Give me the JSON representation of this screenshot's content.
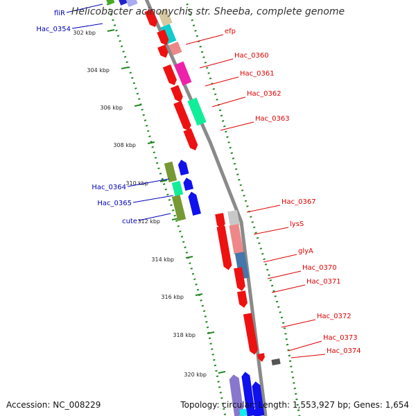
{
  "title": "Helicobacter acinonychis str. Sheeba, complete genome",
  "accession_label": "Accession:",
  "accession": "NC_008229",
  "topology_text": "Topology: circular; Length: 1,553,927 bp; Genes: 1,654",
  "colors": {
    "backbone": "#8a8a8a",
    "dotted_track": "#228822",
    "left_label": "#0000bb",
    "right_label": "#dd0000",
    "tick_text": "#222222"
  },
  "ticks": [
    {
      "label": "302 kbp"
    },
    {
      "label": "304 kbp"
    },
    {
      "label": "306 kbp"
    },
    {
      "label": "308 kbp"
    },
    {
      "label": "310 kbp"
    },
    {
      "label": "312 kbp"
    },
    {
      "label": "314 kbp"
    },
    {
      "label": "316 kbp"
    },
    {
      "label": "318 kbp"
    },
    {
      "label": "320 kbp"
    }
  ],
  "genes_left": [
    {
      "name": "fliR"
    },
    {
      "name": "Hac_0354"
    },
    {
      "name": "Hac_0364"
    },
    {
      "name": "Hac_0365"
    },
    {
      "name": "cute"
    }
  ],
  "genes_right": [
    {
      "name": "efp"
    },
    {
      "name": "Hac_0360"
    },
    {
      "name": "Hac_0361"
    },
    {
      "name": "Hac_0362"
    },
    {
      "name": "Hac_0363"
    },
    {
      "name": "Hac_0367"
    },
    {
      "name": "lysS"
    },
    {
      "name": "glyA"
    },
    {
      "name": "Hac_0370"
    },
    {
      "name": "Hac_0371"
    },
    {
      "name": "Hac_0372"
    },
    {
      "name": "Hac_0373"
    },
    {
      "name": "Hac_0374"
    }
  ]
}
